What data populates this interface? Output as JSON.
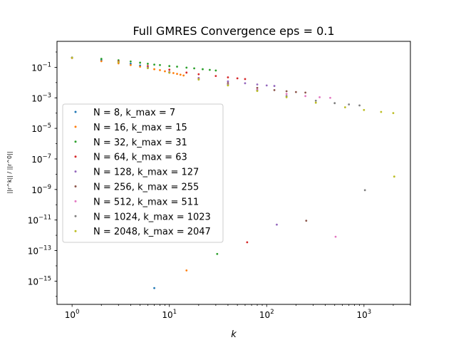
{
  "chart_data": {
    "type": "scatter",
    "title": "Full GMRES Convergence eps = 0.1",
    "xlabel": "k",
    "ylabel": "||r^k|| / ||r^0||",
    "xscale": "log",
    "yscale": "log",
    "xlim": [
      0.7,
      3000
    ],
    "ylim": [
      3e-17,
      5
    ],
    "xticks": [
      {
        "value": 1,
        "base": "10",
        "exp": "0"
      },
      {
        "value": 10,
        "base": "10",
        "exp": "1"
      },
      {
        "value": 100,
        "base": "10",
        "exp": "2"
      },
      {
        "value": 1000,
        "base": "10",
        "exp": "3"
      }
    ],
    "yticks": [
      {
        "value": 1e-15,
        "base": "10",
        "exp": "−15"
      },
      {
        "value": 1e-13,
        "base": "10",
        "exp": "−13"
      },
      {
        "value": 1e-11,
        "base": "10",
        "exp": "−11"
      },
      {
        "value": 1e-09,
        "base": "10",
        "exp": "−9"
      },
      {
        "value": 1e-07,
        "base": "10",
        "exp": "−7"
      },
      {
        "value": 1e-05,
        "base": "10",
        "exp": "−5"
      },
      {
        "value": 0.001,
        "base": "10",
        "exp": "−3"
      },
      {
        "value": 0.1,
        "base": "10",
        "exp": "−1"
      }
    ],
    "grid": false,
    "legend_position": "center-left",
    "series": [
      {
        "name": "N = 8, k_max = 7",
        "color": "#1f77b4",
        "k_max": 7,
        "points": [
          [
            1,
            0.44
          ],
          [
            2,
            0.3
          ],
          [
            3,
            0.22
          ],
          [
            4,
            0.17
          ],
          [
            5,
            0.13
          ],
          [
            6,
            0.1
          ],
          [
            7,
            3.5e-16
          ]
        ]
      },
      {
        "name": "N = 16, k_max = 15",
        "color": "#ff7f0e",
        "k_max": 15,
        "points": [
          [
            1,
            0.4
          ],
          [
            2,
            0.25
          ],
          [
            3,
            0.18
          ],
          [
            4,
            0.14
          ],
          [
            5,
            0.11
          ],
          [
            6,
            0.09
          ],
          [
            7,
            0.075
          ],
          [
            8,
            0.065
          ],
          [
            9,
            0.055
          ],
          [
            10,
            0.048
          ],
          [
            11,
            0.042
          ],
          [
            12,
            0.037
          ],
          [
            13,
            0.033
          ],
          [
            14,
            0.029
          ],
          [
            15,
            5e-15
          ]
        ]
      },
      {
        "name": "N = 32, k_max = 31",
        "color": "#2ca02c",
        "k_max": 31,
        "points": [
          [
            1,
            0.42
          ],
          [
            2,
            0.36
          ],
          [
            3,
            0.29
          ],
          [
            4,
            0.24
          ],
          [
            5,
            0.2
          ],
          [
            6,
            0.17
          ],
          [
            7,
            0.15
          ],
          [
            8,
            0.14
          ],
          [
            10,
            0.12
          ],
          [
            12,
            0.11
          ],
          [
            15,
            0.095
          ],
          [
            18,
            0.085
          ],
          [
            22,
            0.075
          ],
          [
            26,
            0.068
          ],
          [
            30,
            0.062
          ],
          [
            31,
            6e-14
          ]
        ]
      },
      {
        "name": "N = 64, k_max = 63",
        "color": "#d62728",
        "k_max": 63,
        "points": [
          [
            1,
            0.42
          ],
          [
            3,
            0.25
          ],
          [
            6,
            0.12
          ],
          [
            10,
            0.07
          ],
          [
            15,
            0.045
          ],
          [
            20,
            0.035
          ],
          [
            30,
            0.027
          ],
          [
            40,
            0.022
          ],
          [
            50,
            0.019
          ],
          [
            60,
            0.017
          ],
          [
            63,
            3.5e-13
          ]
        ]
      },
      {
        "name": "N = 128, k_max = 127",
        "color": "#9467bd",
        "k_max": 127,
        "points": [
          [
            1,
            0.42
          ],
          [
            3,
            0.22
          ],
          [
            6,
            0.1
          ],
          [
            10,
            0.05
          ],
          [
            20,
            0.02
          ],
          [
            40,
            0.012
          ],
          [
            60,
            0.009
          ],
          [
            80,
            0.0075
          ],
          [
            100,
            0.0065
          ],
          [
            120,
            0.006
          ],
          [
            127,
            5e-12
          ]
        ]
      },
      {
        "name": "N = 256, k_max = 255",
        "color": "#8c564b",
        "k_max": 255,
        "points": [
          [
            1,
            0.42
          ],
          [
            3,
            0.22
          ],
          [
            6,
            0.09
          ],
          [
            10,
            0.045
          ],
          [
            20,
            0.018
          ],
          [
            40,
            0.009
          ],
          [
            80,
            0.0045
          ],
          [
            120,
            0.0032
          ],
          [
            160,
            0.0027
          ],
          [
            200,
            0.0024
          ],
          [
            250,
            0.0022
          ],
          [
            255,
            9e-12
          ]
        ]
      },
      {
        "name": "N = 512, k_max = 511",
        "color": "#e377c2",
        "k_max": 511,
        "points": [
          [
            1,
            0.42
          ],
          [
            3,
            0.22
          ],
          [
            6,
            0.09
          ],
          [
            10,
            0.045
          ],
          [
            20,
            0.017
          ],
          [
            40,
            0.0075
          ],
          [
            80,
            0.0035
          ],
          [
            160,
            0.0018
          ],
          [
            250,
            0.0013
          ],
          [
            350,
            0.0011
          ],
          [
            450,
            0.001
          ],
          [
            511,
            8e-13
          ]
        ]
      },
      {
        "name": "N = 1024, k_max = 1023",
        "color": "#7f7f7f",
        "k_max": 1023,
        "points": [
          [
            1,
            0.42
          ],
          [
            3,
            0.22
          ],
          [
            6,
            0.09
          ],
          [
            10,
            0.045
          ],
          [
            20,
            0.016
          ],
          [
            40,
            0.007
          ],
          [
            80,
            0.003
          ],
          [
            160,
            0.0013
          ],
          [
            320,
            0.00065
          ],
          [
            500,
            0.00045
          ],
          [
            700,
            0.00037
          ],
          [
            900,
            0.00032
          ],
          [
            1023,
            9e-10
          ]
        ]
      },
      {
        "name": "N = 2048, k_max = 2047",
        "color": "#bcbd22",
        "k_max": 2047,
        "points": [
          [
            1,
            0.42
          ],
          [
            3,
            0.22
          ],
          [
            6,
            0.09
          ],
          [
            10,
            0.045
          ],
          [
            20,
            0.016
          ],
          [
            40,
            0.0065
          ],
          [
            80,
            0.0028
          ],
          [
            160,
            0.0011
          ],
          [
            320,
            0.00048
          ],
          [
            640,
            0.00024
          ],
          [
            1000,
            0.00016
          ],
          [
            1500,
            0.00012
          ],
          [
            2000,
            0.0001
          ],
          [
            2047,
            7e-09
          ]
        ]
      }
    ]
  }
}
